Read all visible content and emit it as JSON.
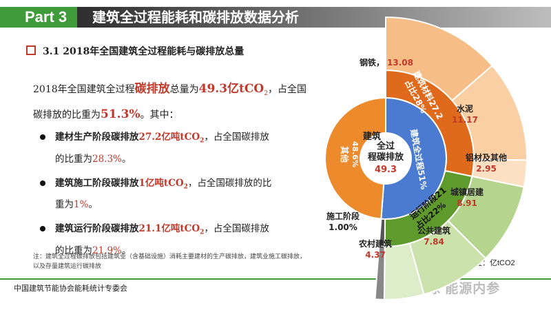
{
  "header": {
    "part": "Part 3",
    "title": "建筑全过程能耗和碳排放数据分析"
  },
  "section": {
    "title": "3.1 2018年全国建筑全过程能耗与碳排放总量"
  },
  "intro": {
    "p1": "2018年全国建筑全过程",
    "p2": "碳排放",
    "p3": "总量为",
    "p4": "49.3亿tCO",
    "p5": "2",
    "p6": "，占全国",
    "p7": "碳排放的比重为",
    "p8": "51.3%",
    "p9": "。其中："
  },
  "bullets": [
    {
      "a": "建材生产阶段碳排放",
      "b": "27.2亿吨tCO",
      "c": "2",
      "d": "，占全国碳排放",
      "e": "的比重为",
      "f": "28.3%",
      "g": "。"
    },
    {
      "a": "建筑施工阶段碳排放",
      "b": "1亿吨tCO",
      "c": "2",
      "d": "，占全国碳排放的比",
      "e": "重为",
      "f": "1%",
      "g": "。"
    },
    {
      "a": "建筑运行阶段碳排放",
      "b": "21.1亿吨tCO",
      "c": "2",
      "d": "，占全国碳排放",
      "e": "的比重为",
      "f": "21.9%",
      "g": "。"
    }
  ],
  "note": "注：建筑全过程碳排放包括建筑业（含基础设施）消耗主要建材的生产碳排放，建筑业施工碳排放，以及存量建筑运行碳排放",
  "footer": "中国建筑节能协会能耗统计专委会",
  "watermark": "雪球 能源内参",
  "unit_label": "单位：亿tCO2",
  "chart_data": {
    "type": "sunburst",
    "unit": "亿tCO2",
    "center": {
      "label_lines": [
        "建筑",
        "程碳排放"
      ],
      "label_top": "全过",
      "value": "49.3"
    },
    "inner_ring": [
      {
        "name": "建筑全过程51%",
        "share": 51,
        "color": "#4a7bd0"
      },
      {
        "name": "其他",
        "pct": "48.6%",
        "share": 48.6,
        "color": "#ec8a2c"
      }
    ],
    "middle_ring": [
      {
        "name": "建筑材料27.2",
        "name2": "占比28%",
        "value": 27.2,
        "color": "#e06a1b"
      },
      {
        "name": "运行阶段21",
        "name2": "占比22%",
        "value": 21.1,
        "color": "#5f9a2c"
      },
      {
        "name": "施工阶段",
        "value": 1.0,
        "color": "#555555"
      }
    ],
    "outer_ring": [
      {
        "name": "钢铁",
        "value": "13.08",
        "v": 13.08,
        "color": "#f6bd86"
      },
      {
        "name": "水泥",
        "value": "11.17",
        "v": 11.17,
        "color": "#f9cfa3"
      },
      {
        "name": "铝材及其他",
        "value": "2.95",
        "v": 2.95,
        "color": "#fbe0c3"
      },
      {
        "name": "城镇居建",
        "value": "8.91",
        "v": 8.91,
        "color": "#b5d48d"
      },
      {
        "name": "公共建筑",
        "value": "7.84",
        "v": 7.84,
        "color": "#cce2ad"
      },
      {
        "name": "农村建筑",
        "value": "4.37",
        "v": 4.37,
        "color": "#deedc9"
      },
      {
        "name": "施工阶段",
        "value": "1.00%",
        "v": 1.0,
        "color": "#888888"
      }
    ]
  }
}
